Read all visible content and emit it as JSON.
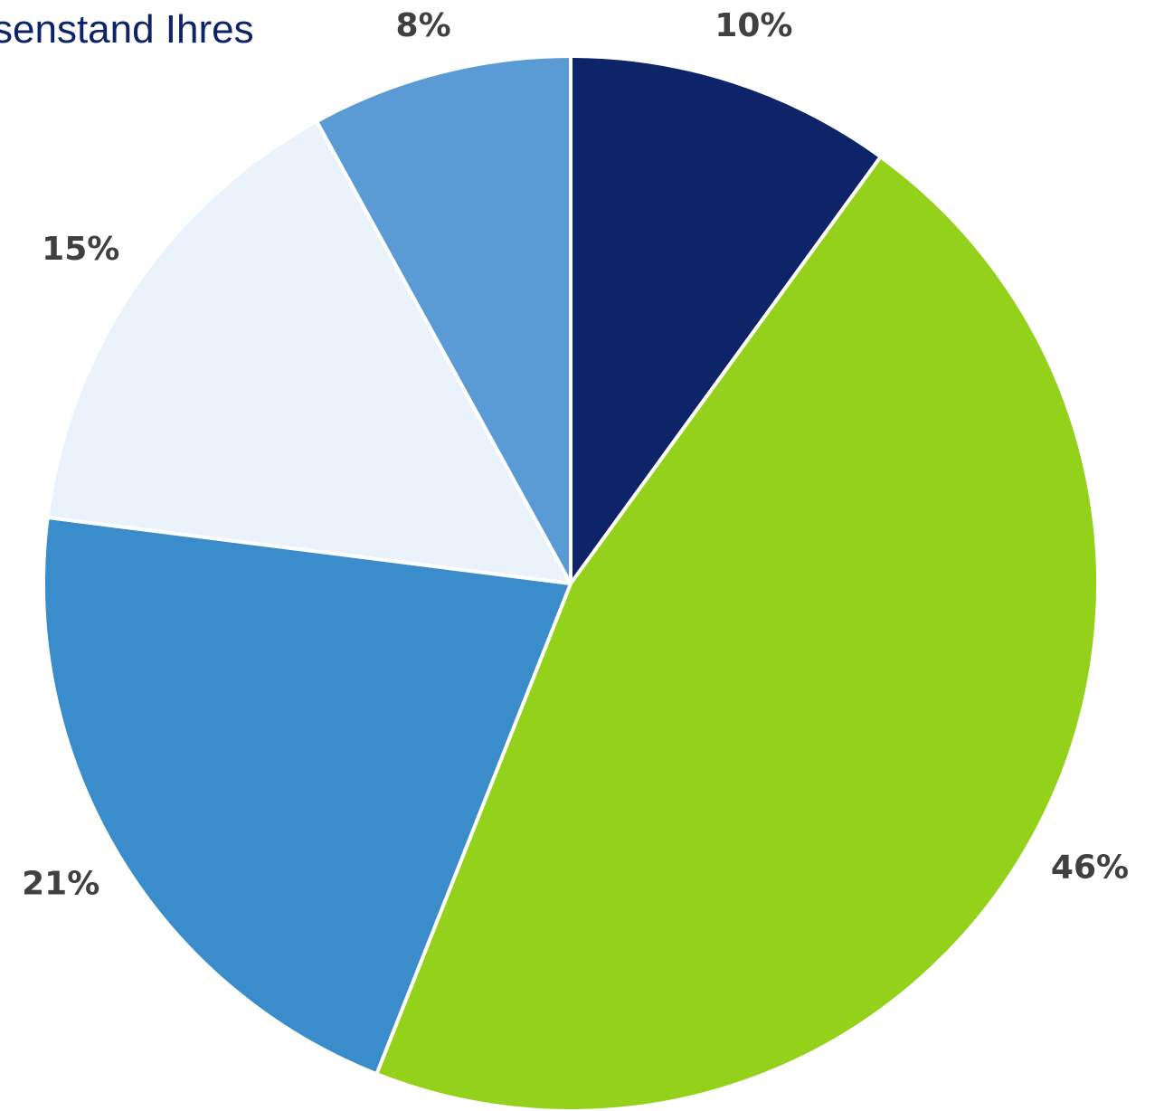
{
  "chart_data": {
    "type": "pie",
    "title": "senstand Ihres",
    "start_angle_deg": 0,
    "direction": "clockwise",
    "slices": [
      {
        "label": "10%",
        "value": 10,
        "color": "#0d2468"
      },
      {
        "label": "46%",
        "value": 46,
        "color": "#94d11a"
      },
      {
        "label": "21%",
        "value": 21,
        "color": "#3a8ccb"
      },
      {
        "label": "15%",
        "value": 15,
        "color": "#eaf2fb"
      },
      {
        "label": "8%",
        "value": 8,
        "color": "#5b9bd5"
      }
    ]
  }
}
